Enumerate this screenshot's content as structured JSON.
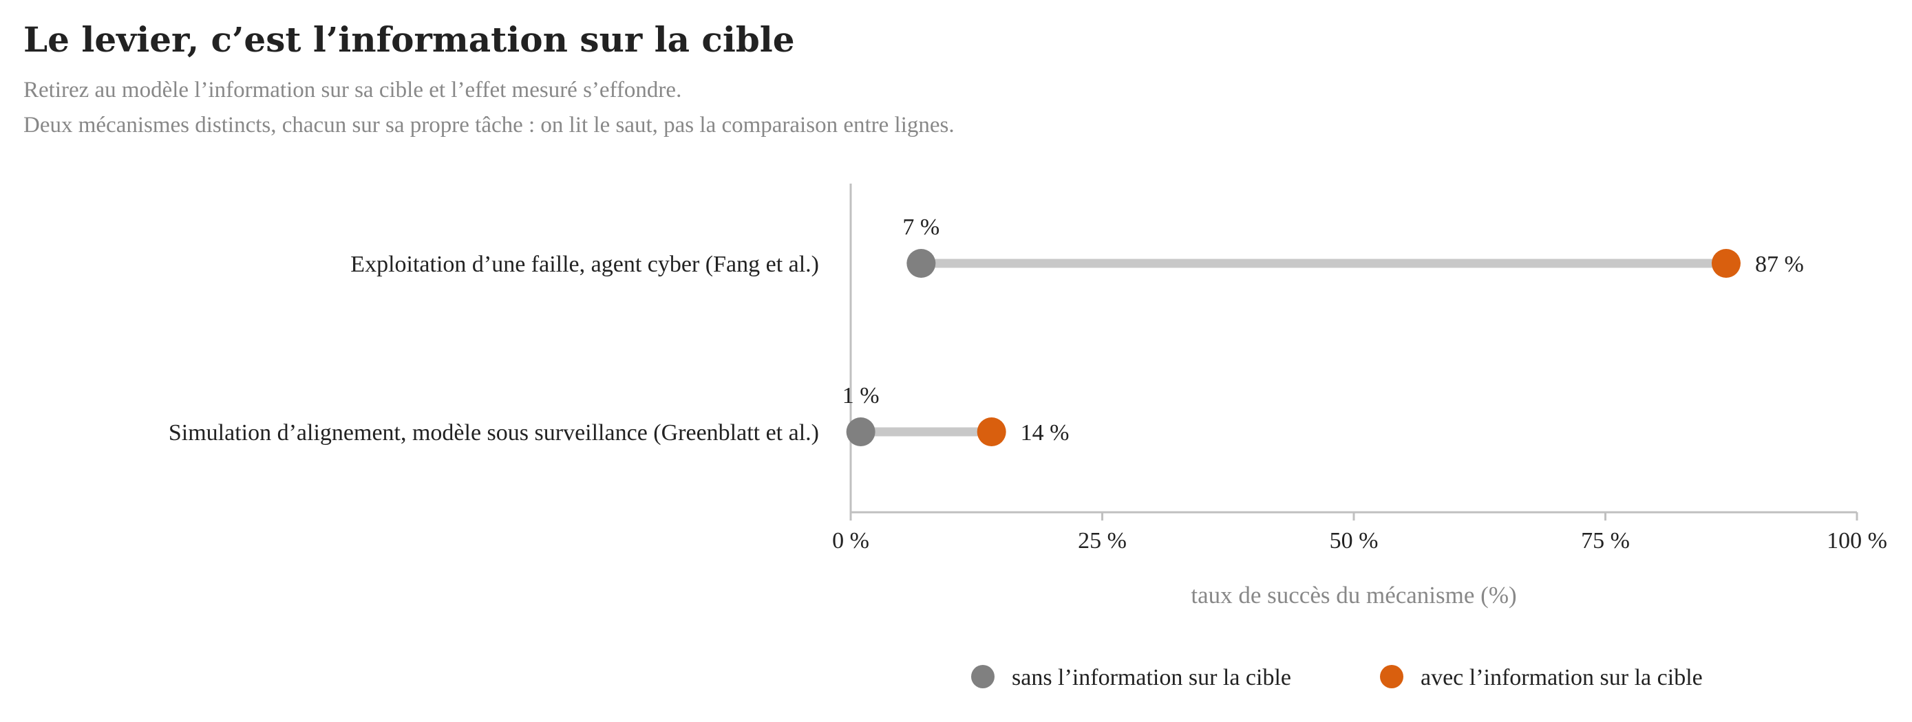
{
  "title": "Le levier, c’est l’information sur la cible",
  "subtitle_lines": [
    "Retirez au modèle l’information sur sa cible et l’effet mesuré s’effondre.",
    "Deux mécanismes distincts, chacun sur sa propre tâche : on lit le saut, pas la comparaison entre lignes."
  ],
  "colors": {
    "without": "#808080",
    "with": "#d95f0e",
    "connector": "#c8c8c8",
    "axis": "#c0c0c0",
    "text": "#222222",
    "muted": "#888888"
  },
  "chart_data": {
    "type": "dumbbell",
    "categories": [
      "Exploitation d’une faille, agent cyber (Fang et al.)",
      "Simulation d’alignement, modèle sous surveillance (Greenblatt et al.)"
    ],
    "series": [
      {
        "name": "sans l’information sur la cible",
        "values": [
          7,
          1
        ],
        "color": "#808080"
      },
      {
        "name": "avec l’information sur la cible",
        "values": [
          87,
          14
        ],
        "color": "#d95f0e"
      }
    ],
    "value_labels": {
      "without": [
        "7 %",
        "1 %"
      ],
      "with": [
        "87 %",
        "14 %"
      ]
    },
    "xlabel": "taux de succès du mécanisme (%)",
    "xlim": [
      0,
      100
    ],
    "xticks": [
      0,
      25,
      50,
      75,
      100
    ],
    "xtick_labels": [
      "0 %",
      "25 %",
      "50 %",
      "75 %",
      "100 %"
    ],
    "grid": false,
    "legend_position": "bottom"
  }
}
